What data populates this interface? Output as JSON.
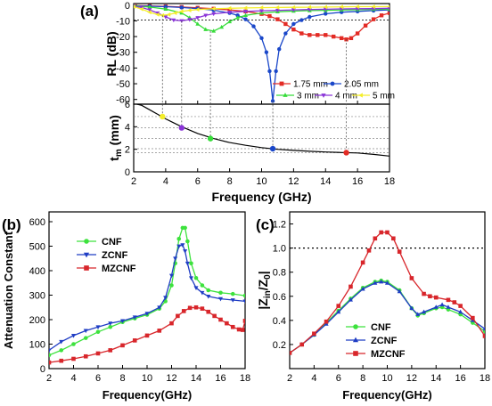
{
  "panels": {
    "a": "(a)",
    "b": "(b)",
    "c": "(c)"
  },
  "colors": {
    "1.75 mm": "#e32b25",
    "2.05 mm": "#1a47c9",
    "3 mm": "#36dc3a",
    "4 mm": "#8a34d8",
    "5 mm": "#f4ee2a",
    "CNF": "#3de23d",
    "ZCNF": "#1f3dc4",
    "MZCNF": "#d8262b"
  },
  "chart_data": [
    {
      "id": "a-top",
      "type": "line",
      "xlim": [
        2,
        18
      ],
      "ylim": [
        -63,
        1
      ],
      "xlabel": "",
      "ylabel": "RL (dB)",
      "xticks": [
        2,
        4,
        6,
        8,
        10,
        12,
        14,
        16,
        18
      ],
      "yticks": [
        0,
        -10,
        -20,
        -30,
        -40,
        -50,
        -60
      ],
      "ytick_labels": [
        "0",
        "-10",
        "-20",
        "-30",
        "-40",
        "-50",
        "-60"
      ],
      "reference_line": -9.5,
      "legend": [
        "1.75 mm",
        "2.05 mm",
        "3 mm",
        "4 mm",
        "5 mm"
      ],
      "series": [
        {
          "name": "1.75 mm",
          "marker": "square",
          "x": [
            2,
            3,
            4,
            5,
            6,
            7,
            8,
            9,
            10,
            10.5,
            11,
            11.5,
            12,
            12.5,
            13,
            13.5,
            14,
            14.5,
            15,
            15.3,
            15.6,
            16,
            16.5,
            17,
            17.5,
            18
          ],
          "y": [
            -0.3,
            -0.5,
            -0.8,
            -1.2,
            -1.7,
            -2.3,
            -3.0,
            -4.0,
            -5.6,
            -7.0,
            -9.0,
            -12.0,
            -15.5,
            -18.0,
            -19.0,
            -19.0,
            -19.0,
            -20.0,
            -21.0,
            -21.8,
            -21.0,
            -18.0,
            -13.0,
            -9.0,
            -6.5,
            -5.0
          ]
        },
        {
          "name": "2.05 mm",
          "marker": "circle",
          "x": [
            2,
            3,
            4,
            5,
            6,
            7,
            8,
            8.5,
            9,
            9.5,
            10,
            10.3,
            10.5,
            10.7,
            10.9,
            11.1,
            11.5,
            12,
            12.5,
            13,
            14,
            15,
            16,
            17,
            18
          ],
          "y": [
            -0.4,
            -0.7,
            -1.0,
            -1.5,
            -2.2,
            -3.2,
            -5.0,
            -6.5,
            -9.0,
            -13.5,
            -21.0,
            -30.0,
            -42.0,
            -61.0,
            -42.0,
            -28.0,
            -18.0,
            -12.0,
            -9.5,
            -7.5,
            -5.5,
            -4.5,
            -4.0,
            -3.5,
            -3.0
          ]
        },
        {
          "name": "3 mm",
          "marker": "triangle-up",
          "x": [
            2,
            3,
            4,
            5,
            5.5,
            6,
            6.5,
            7,
            7.5,
            8,
            8.5,
            9,
            10,
            11,
            12,
            13,
            14,
            15,
            16,
            17,
            18
          ],
          "y": [
            -0.6,
            -1.2,
            -2.5,
            -5.0,
            -8.0,
            -12.0,
            -15.5,
            -16.5,
            -14.0,
            -10.5,
            -8.0,
            -6.5,
            -5.0,
            -4.2,
            -3.8,
            -3.5,
            -3.3,
            -3.1,
            -2.9,
            -2.7,
            -2.5
          ]
        },
        {
          "name": "4 mm",
          "marker": "triangle-down",
          "x": [
            2,
            2.5,
            3,
            3.5,
            4,
            4.5,
            5,
            5.5,
            6,
            6.5,
            7,
            8,
            9,
            10,
            11,
            12,
            13,
            14,
            15,
            16,
            17,
            18
          ],
          "y": [
            -0.8,
            -1.5,
            -3.0,
            -5.0,
            -7.5,
            -9.5,
            -10.0,
            -9.2,
            -8.0,
            -6.5,
            -5.5,
            -4.5,
            -4.0,
            -3.6,
            -3.3,
            -3.0,
            -2.8,
            -2.6,
            -2.4,
            -2.3,
            -2.2,
            -2.0
          ]
        },
        {
          "name": "5 mm",
          "marker": "triangle-left",
          "x": [
            2,
            2.5,
            3,
            3.5,
            3.8,
            4.2,
            4.6,
            5,
            5.5,
            6,
            7,
            8,
            9,
            10,
            11,
            12,
            13,
            14,
            15,
            16,
            17,
            18
          ],
          "y": [
            -1.0,
            -2.5,
            -4.5,
            -6.0,
            -6.5,
            -6.0,
            -5.0,
            -4.0,
            -3.3,
            -2.8,
            -2.3,
            -2.0,
            -1.8,
            -1.6,
            -1.5,
            -1.4,
            -1.3,
            -1.2,
            -1.1,
            -1.0,
            -1.0,
            -0.9
          ]
        }
      ]
    },
    {
      "id": "a-bottom",
      "type": "line",
      "xlim": [
        2,
        18
      ],
      "ylim": [
        0,
        6
      ],
      "xlabel": "Frequency (GHz)",
      "ylabel": "t",
      "ylabel_sub": "m",
      "ylabel_unit": " (mm)",
      "xticks": [
        2,
        4,
        6,
        8,
        10,
        12,
        14,
        16,
        18
      ],
      "xtick_labels": [
        "2",
        "4",
        "6",
        "8",
        "10",
        "12",
        "14",
        "16",
        "18"
      ],
      "yticks": [
        0,
        2,
        4,
        6
      ],
      "ytick_labels": [
        "0",
        "2",
        "4",
        "6"
      ],
      "series": [
        {
          "name": "matching thickness",
          "x": [
            2.2,
            2.5,
            3,
            3.5,
            4,
            4.5,
            5,
            6,
            7,
            8,
            9,
            10,
            11,
            12,
            13,
            14,
            15,
            16,
            17,
            18
          ],
          "y": [
            6.0,
            5.9,
            5.5,
            5.1,
            4.7,
            4.35,
            4.0,
            3.4,
            2.95,
            2.6,
            2.35,
            2.15,
            2.0,
            1.9,
            1.82,
            1.76,
            1.71,
            1.67,
            1.55,
            1.4
          ]
        },
        {
          "name": "points",
          "x": [
            3.8,
            5.0,
            6.8,
            10.7,
            15.3
          ],
          "y": [
            4.9,
            3.9,
            2.95,
            2.05,
            1.7
          ],
          "colors": [
            "5 mm",
            "4 mm",
            "3 mm",
            "2.05 mm",
            "1.75 mm"
          ]
        }
      ]
    },
    {
      "id": "b",
      "type": "line",
      "xlim": [
        2,
        18
      ],
      "ylim": [
        0,
        640
      ],
      "xlabel": "Frequency(GHz)",
      "ylabel": "Attenuation Constant",
      "xticks": [
        2,
        4,
        6,
        8,
        10,
        12,
        14,
        16,
        18
      ],
      "xtick_labels": [
        "2",
        "4",
        "6",
        "8",
        "10",
        "12",
        "14",
        "16",
        "18"
      ],
      "yticks": [
        0,
        100,
        200,
        300,
        400,
        500,
        600
      ],
      "ytick_labels": [
        "0",
        "100",
        "200",
        "300",
        "400",
        "500",
        "600"
      ],
      "legend": [
        "CNF",
        "ZCNF",
        "MZCNF"
      ],
      "series": [
        {
          "name": "CNF",
          "marker": "circle",
          "x": [
            2,
            3,
            4,
            5,
            6,
            7,
            8,
            9,
            10,
            11,
            11.5,
            12,
            12.3,
            12.6,
            12.9,
            13.1,
            13.3,
            13.6,
            14,
            14.5,
            15,
            16,
            17,
            18
          ],
          "y": [
            55,
            75,
            100,
            125,
            150,
            170,
            190,
            205,
            220,
            245,
            275,
            340,
            430,
            530,
            575,
            575,
            520,
            430,
            370,
            340,
            320,
            310,
            305,
            298
          ]
        },
        {
          "name": "ZCNF",
          "marker": "triangle-down",
          "x": [
            2,
            3,
            4,
            5,
            6,
            7,
            8,
            9,
            10,
            11,
            11.5,
            12,
            12.3,
            12.6,
            12.9,
            13.1,
            13.3,
            13.6,
            14,
            14.5,
            15,
            16,
            17,
            18
          ],
          "y": [
            75,
            110,
            135,
            155,
            170,
            185,
            195,
            210,
            225,
            250,
            290,
            380,
            450,
            500,
            505,
            480,
            430,
            370,
            330,
            310,
            295,
            285,
            280,
            275
          ]
        },
        {
          "name": "MZCNF",
          "marker": "square",
          "x": [
            2,
            3,
            4,
            5,
            6,
            7,
            8,
            9,
            10,
            11,
            12,
            12.5,
            13,
            13.5,
            14,
            14.5,
            15,
            15.5,
            16,
            16.5,
            17,
            17.5,
            17.8,
            18
          ],
          "y": [
            25,
            32,
            40,
            50,
            62,
            75,
            95,
            115,
            135,
            155,
            185,
            215,
            235,
            248,
            250,
            245,
            232,
            215,
            200,
            185,
            170,
            160,
            158,
            195
          ]
        }
      ]
    },
    {
      "id": "c",
      "type": "line",
      "xlim": [
        2,
        18
      ],
      "ylim": [
        0,
        1.3
      ],
      "xlabel": "Frequency(GHz)",
      "ylabel": "|Z",
      "ylabel_sub": "in",
      "ylabel_mid": "/Z",
      "ylabel_sub2": "0",
      "ylabel_end": "|",
      "xticks": [
        2,
        4,
        6,
        8,
        10,
        12,
        14,
        16,
        18
      ],
      "xtick_labels": [
        "2",
        "4",
        "6",
        "8",
        "10",
        "12",
        "14",
        "16",
        "18"
      ],
      "yticks": [
        0.2,
        0.4,
        0.6,
        0.8,
        1.0,
        1.2
      ],
      "ytick_labels": [
        "0.2",
        "0.4",
        "0.6",
        "0.8",
        "1.0",
        "1.2"
      ],
      "reference_line": 1.0,
      "legend": [
        "CNF",
        "ZCNF",
        "MZCNF"
      ],
      "series": [
        {
          "name": "CNF",
          "marker": "circle",
          "x": [
            2,
            3,
            4,
            5,
            6,
            7,
            8,
            9,
            9.5,
            10,
            11,
            12,
            12.5,
            13,
            14,
            14.5,
            15,
            16,
            17,
            18
          ],
          "y": [
            0.13,
            0.2,
            0.28,
            0.38,
            0.48,
            0.58,
            0.67,
            0.72,
            0.73,
            0.72,
            0.65,
            0.5,
            0.44,
            0.46,
            0.5,
            0.51,
            0.49,
            0.45,
            0.38,
            0.31
          ]
        },
        {
          "name": "ZCNF",
          "marker": "triangle-up",
          "x": [
            2,
            3,
            4,
            5,
            6,
            7,
            8,
            9,
            9.5,
            10,
            11,
            12,
            12.5,
            13,
            14,
            14.5,
            15,
            16,
            17,
            18
          ],
          "y": [
            0.13,
            0.2,
            0.28,
            0.37,
            0.47,
            0.57,
            0.66,
            0.71,
            0.72,
            0.71,
            0.64,
            0.5,
            0.45,
            0.47,
            0.51,
            0.53,
            0.51,
            0.47,
            0.4,
            0.33
          ]
        },
        {
          "name": "MZCNF",
          "marker": "square",
          "x": [
            2,
            3,
            4,
            5,
            6,
            7,
            8,
            8.5,
            9,
            9.5,
            10,
            10.5,
            11,
            12,
            13,
            13.5,
            14,
            15,
            15.5,
            16,
            17,
            18
          ],
          "y": [
            0.13,
            0.2,
            0.29,
            0.39,
            0.52,
            0.68,
            0.88,
            0.98,
            1.08,
            1.13,
            1.13,
            1.08,
            0.97,
            0.75,
            0.62,
            0.6,
            0.59,
            0.57,
            0.55,
            0.52,
            0.42,
            0.27
          ]
        }
      ]
    }
  ]
}
